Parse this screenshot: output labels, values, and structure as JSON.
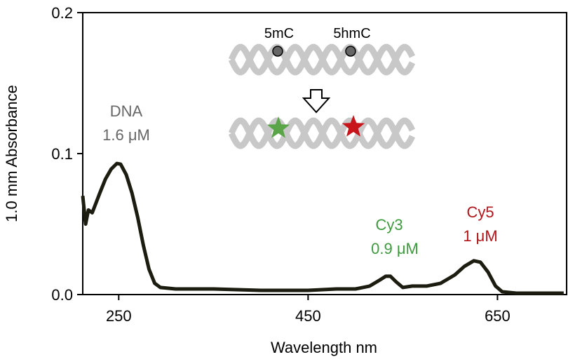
{
  "chart_data": {
    "type": "line",
    "x_label": "Wavelength nm",
    "y_label": "1.0 mm Absorbance",
    "xlim": [
      212,
      723
    ],
    "ylim": [
      0,
      0.2
    ],
    "xticks": [
      250,
      450,
      650
    ],
    "yticks": [
      {
        "value": 0,
        "label": "0.0"
      },
      0.1,
      0.2
    ],
    "series": [
      {
        "color": "#1c1c10",
        "x": [
          212,
          215,
          218,
          222,
          226,
          230,
          236,
          242,
          248,
          252,
          258,
          264,
          270,
          276,
          282,
          288,
          294,
          310,
          350,
          400,
          450,
          480,
          500,
          515,
          525,
          532,
          537,
          543,
          550,
          560,
          575,
          590,
          605,
          615,
          625,
          632,
          640,
          648,
          655,
          670,
          700,
          720
        ],
        "values": [
          0.07,
          0.05,
          0.06,
          0.058,
          0.065,
          0.072,
          0.082,
          0.089,
          0.093,
          0.0925,
          0.085,
          0.072,
          0.055,
          0.035,
          0.018,
          0.008,
          0.005,
          0.004,
          0.004,
          0.003,
          0.003,
          0.004,
          0.004,
          0.006,
          0.01,
          0.013,
          0.013,
          0.009,
          0.005,
          0.006,
          0.006,
          0.008,
          0.014,
          0.02,
          0.024,
          0.023,
          0.016,
          0.006,
          0.002,
          0.001,
          0.001,
          0.001
        ]
      }
    ],
    "annotations": [
      {
        "text": "DNA",
        "color": "#666666"
      },
      {
        "text": "1.6 μM",
        "color": "#666666"
      },
      {
        "text": "Cy3",
        "color": "#3f9a3f"
      },
      {
        "text": "0.9 μM",
        "color": "#3f9a3f"
      },
      {
        "text": "Cy5",
        "color": "#b0151a"
      },
      {
        "text": "1 μM",
        "color": "#b0151a"
      },
      {
        "text": "5mC",
        "color": "#000000"
      },
      {
        "text": "5hmC",
        "color": "#000000"
      }
    ]
  }
}
